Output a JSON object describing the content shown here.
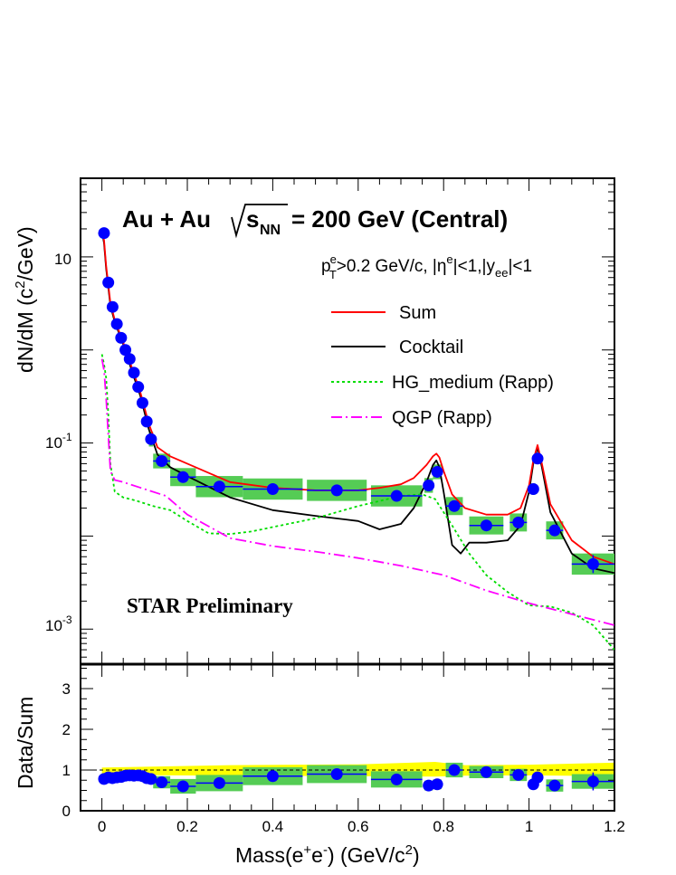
{
  "chart_data": [
    {
      "type": "line",
      "panel": "upper",
      "title": "Au + Au",
      "energy_label": "= 200 GeV (Central)",
      "energy_symbol": "s",
      "energy_subscript": "NN",
      "cuts_label": "pT^e>0.2 GeV/c, |η^e|<1,|y_ee|<1",
      "cuts": {
        "pt": "p",
        "pt_sup": "e",
        "pt_sub": "T",
        "pt_rest": ">0.2 GeV/c, |η",
        "eta_sup": "e",
        "eta_rest": "|<1,|y",
        "y_sub": "ee",
        "y_rest": "|<1"
      },
      "watermark": "STAR Preliminary",
      "ylabel": "dN/dM (c²/GeV)",
      "ylabel_parts": {
        "a": "dN/dM (c",
        "sup": "2",
        "b": "/GeV)"
      },
      "yscale": "log",
      "ylim": [
        0.00042,
        70
      ],
      "xlim": [
        -0.05,
        1.2
      ],
      "ytick_labels": [
        {
          "value": 10,
          "base": "10",
          "exp": ""
        },
        {
          "value": 0.1,
          "base": "10",
          "exp": "-1"
        },
        {
          "value": 0.001,
          "base": "10",
          "exp": "-3"
        }
      ],
      "legend": [
        {
          "label": "Sum",
          "color": "#ff0000",
          "style": "solid"
        },
        {
          "label": "Cocktail",
          "color": "#000000",
          "style": "solid"
        },
        {
          "label": "HG_medium (Rapp)",
          "color": "#00dd00",
          "style": "dotted"
        },
        {
          "label": "QGP (Rapp)",
          "color": "#ff00ff",
          "style": "dashdot"
        }
      ],
      "series": [
        {
          "name": "Data",
          "marker_color": "#0000ff",
          "sys_color": "#55cc55",
          "x": [
            0.005,
            0.015,
            0.025,
            0.035,
            0.045,
            0.055,
            0.065,
            0.075,
            0.085,
            0.095,
            0.105,
            0.115,
            0.14,
            0.19,
            0.275,
            0.4,
            0.55,
            0.69,
            0.765,
            0.785,
            0.825,
            0.9,
            0.975,
            1.01,
            1.02,
            1.06,
            1.15
          ],
          "y": [
            18,
            5.3,
            2.9,
            1.9,
            1.35,
            1.0,
            0.8,
            0.57,
            0.4,
            0.27,
            0.17,
            0.11,
            0.064,
            0.043,
            0.034,
            0.032,
            0.031,
            0.027,
            0.035,
            0.049,
            0.021,
            0.013,
            0.014,
            0.032,
            0.068,
            0.0115,
            0.005
          ],
          "x_err": [
            0.005,
            0.005,
            0.005,
            0.005,
            0.005,
            0.005,
            0.005,
            0.005,
            0.005,
            0.005,
            0.005,
            0.005,
            0.02,
            0.03,
            0.055,
            0.07,
            0.07,
            0.06,
            0.01,
            0.01,
            0.02,
            0.04,
            0.02,
            0.005,
            0.005,
            0.02,
            0.05
          ],
          "sys_half_height_factor": [
            1.12,
            1.12,
            1.12,
            1.12,
            1.12,
            1.12,
            1.12,
            1.12,
            1.12,
            1.12,
            1.15,
            1.2,
            1.2,
            1.25,
            1.3,
            1.3,
            1.3,
            1.3,
            1.2,
            1.2,
            1.25,
            1.25,
            1.25,
            1.15,
            1.15,
            1.25,
            1.3
          ]
        },
        {
          "name": "Sum",
          "color": "#ff0000",
          "x": [
            0.0,
            0.005,
            0.01,
            0.02,
            0.03,
            0.05,
            0.07,
            0.09,
            0.11,
            0.13,
            0.16,
            0.2,
            0.3,
            0.4,
            0.5,
            0.6,
            0.65,
            0.7,
            0.73,
            0.76,
            0.775,
            0.783,
            0.79,
            0.8,
            0.82,
            0.85,
            0.9,
            0.95,
            0.98,
            1.0,
            1.01,
            1.02,
            1.03,
            1.05,
            1.1,
            1.15,
            1.2
          ],
          "y": [
            20,
            15,
            8,
            3.2,
            2.1,
            1.2,
            0.65,
            0.35,
            0.16,
            0.09,
            0.072,
            0.06,
            0.038,
            0.033,
            0.031,
            0.031,
            0.033,
            0.036,
            0.042,
            0.058,
            0.072,
            0.077,
            0.07,
            0.05,
            0.028,
            0.02,
            0.017,
            0.017,
            0.02,
            0.035,
            0.065,
            0.095,
            0.06,
            0.022,
            0.009,
            0.006,
            0.005
          ]
        },
        {
          "name": "Cocktail",
          "color": "#000000",
          "x": [
            0.0,
            0.005,
            0.01,
            0.02,
            0.03,
            0.05,
            0.07,
            0.09,
            0.11,
            0.13,
            0.16,
            0.2,
            0.3,
            0.4,
            0.5,
            0.6,
            0.65,
            0.7,
            0.73,
            0.76,
            0.775,
            0.783,
            0.79,
            0.8,
            0.82,
            0.84,
            0.86,
            0.9,
            0.95,
            0.98,
            1.0,
            1.01,
            1.02,
            1.03,
            1.05,
            1.1,
            1.15,
            1.2
          ],
          "y": [
            19,
            14,
            7.5,
            3.0,
            2.0,
            1.15,
            0.6,
            0.32,
            0.14,
            0.075,
            0.055,
            0.044,
            0.026,
            0.019,
            0.0165,
            0.0145,
            0.0118,
            0.0135,
            0.02,
            0.038,
            0.058,
            0.065,
            0.055,
            0.03,
            0.008,
            0.0065,
            0.0085,
            0.0085,
            0.009,
            0.013,
            0.03,
            0.06,
            0.09,
            0.055,
            0.018,
            0.0065,
            0.0045,
            0.004
          ]
        },
        {
          "name": "HG_medium (Rapp)",
          "color": "#00dd00",
          "x": [
            0.0,
            0.005,
            0.01,
            0.015,
            0.02,
            0.03,
            0.05,
            0.08,
            0.12,
            0.16,
            0.2,
            0.25,
            0.3,
            0.35,
            0.4,
            0.5,
            0.6,
            0.7,
            0.75,
            0.78,
            0.82,
            0.86,
            0.9,
            0.95,
            1.0,
            1.05,
            1.1,
            1.15,
            1.2
          ],
          "y": [
            0.9,
            0.7,
            0.5,
            0.2,
            0.06,
            0.03,
            0.026,
            0.024,
            0.021,
            0.019,
            0.0145,
            0.0107,
            0.0105,
            0.0112,
            0.0125,
            0.0155,
            0.021,
            0.027,
            0.028,
            0.025,
            0.013,
            0.0065,
            0.0038,
            0.0025,
            0.0018,
            0.00175,
            0.0015,
            0.0011,
            0.0006
          ]
        },
        {
          "name": "QGP (Rapp)",
          "color": "#ff00ff",
          "x": [
            0.0,
            0.005,
            0.01,
            0.015,
            0.02,
            0.03,
            0.05,
            0.1,
            0.15,
            0.2,
            0.3,
            0.4,
            0.5,
            0.6,
            0.7,
            0.8,
            0.9,
            1.0,
            1.1,
            1.2
          ],
          "y": [
            0.8,
            0.6,
            0.3,
            0.12,
            0.05,
            0.04,
            0.038,
            0.032,
            0.027,
            0.017,
            0.0095,
            0.0078,
            0.0068,
            0.0058,
            0.0048,
            0.0038,
            0.0026,
            0.0019,
            0.00145,
            0.0011
          ]
        }
      ]
    },
    {
      "type": "scatter",
      "panel": "lower",
      "ylabel": "Data/Sum",
      "xlabel": "Mass(e⁺e⁻) (GeV/c²)",
      "xlabel_parts": {
        "a": "Mass(e",
        "sup1": "+",
        "b": "e",
        "sup2": "-",
        "c": ") (GeV/c",
        "sup3": "2",
        "d": ")"
      },
      "xlim": [
        -0.05,
        1.2
      ],
      "ylim": [
        0,
        3.6
      ],
      "xticks": [
        "0",
        "0.2",
        "0.4",
        "0.6",
        "0.8",
        "1",
        "1.2"
      ],
      "yticks": [
        "0",
        "1",
        "2",
        "3"
      ],
      "reference_line": 1,
      "band_color": "#ffff00",
      "band": {
        "x": [
          0.0,
          0.3,
          0.6,
          0.78,
          0.85,
          1.0,
          1.2
        ],
        "lo": [
          0.88,
          0.86,
          0.85,
          0.84,
          0.86,
          0.87,
          0.85
        ],
        "hi": [
          1.06,
          1.12,
          1.14,
          1.2,
          1.12,
          1.13,
          1.18
        ]
      },
      "series": [
        {
          "name": "Data/Sum",
          "marker_color": "#0000ff",
          "sys_color": "#55cc55",
          "x": [
            0.005,
            0.015,
            0.025,
            0.035,
            0.045,
            0.055,
            0.065,
            0.075,
            0.085,
            0.095,
            0.105,
            0.115,
            0.14,
            0.19,
            0.275,
            0.4,
            0.55,
            0.69,
            0.765,
            0.785,
            0.825,
            0.9,
            0.975,
            1.01,
            1.02,
            1.06,
            1.15
          ],
          "y": [
            0.78,
            0.82,
            0.8,
            0.82,
            0.83,
            0.86,
            0.87,
            0.86,
            0.87,
            0.85,
            0.8,
            0.78,
            0.7,
            0.6,
            0.68,
            0.85,
            0.9,
            0.77,
            0.62,
            0.65,
            1.0,
            0.95,
            0.88,
            0.65,
            0.82,
            0.62,
            0.72
          ],
          "x_err": [
            0.005,
            0.005,
            0.005,
            0.005,
            0.005,
            0.005,
            0.005,
            0.005,
            0.005,
            0.005,
            0.005,
            0.005,
            0.02,
            0.03,
            0.055,
            0.07,
            0.07,
            0.06,
            0.01,
            0.01,
            0.02,
            0.04,
            0.02,
            0.005,
            0.005,
            0.02,
            0.05
          ],
          "sys": [
            0.08,
            0.08,
            0.08,
            0.08,
            0.08,
            0.08,
            0.08,
            0.08,
            0.08,
            0.08,
            0.1,
            0.12,
            0.15,
            0.18,
            0.2,
            0.22,
            0.22,
            0.2,
            0.12,
            0.12,
            0.18,
            0.15,
            0.15,
            0.1,
            0.1,
            0.15,
            0.18
          ]
        }
      ]
    }
  ]
}
